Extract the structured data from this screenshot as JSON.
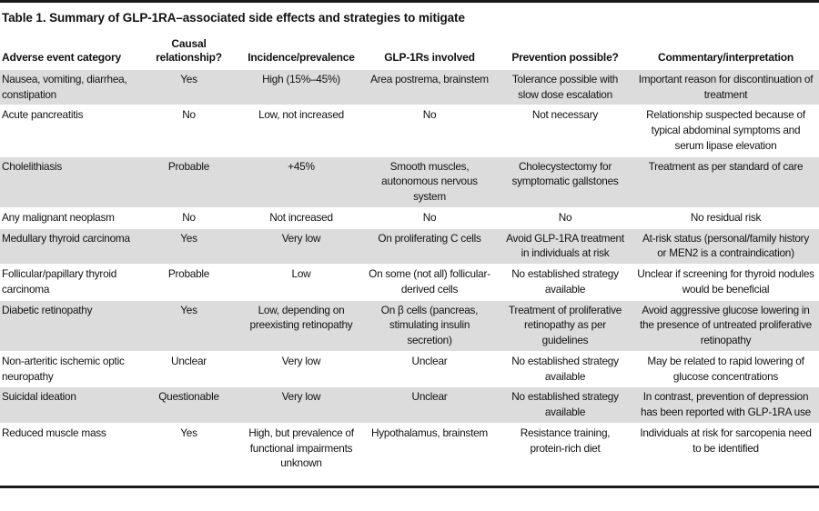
{
  "table": {
    "title": "Table 1. Summary of GLP-1RA–associated side effects and strategies to mitigate",
    "columns": [
      "Adverse event category",
      "Causal relationship?",
      "Incidence/prevalence",
      "GLP-1Rs involved",
      "Prevention possible?",
      "Commentary/interpretation"
    ],
    "rows": [
      [
        "Nausea, vomiting, diarrhea, constipation",
        "Yes",
        "High (15%–45%)",
        "Area postrema, brainstem",
        "Tolerance possible with slow dose escalation",
        "Important reason for discontinuation of treatment"
      ],
      [
        "Acute pancreatitis",
        "No",
        "Low, not increased",
        "No",
        "Not necessary",
        "Relationship suspected because of typical abdominal symptoms and serum lipase elevation"
      ],
      [
        "Cholelithiasis",
        "Probable",
        "+45%",
        "Smooth muscles, autonomous nervous system",
        "Cholecystectomy for symptomatic gallstones",
        "Treatment as per standard of care"
      ],
      [
        "Any malignant neoplasm",
        "No",
        "Not increased",
        "No",
        "No",
        "No residual risk"
      ],
      [
        "Medullary thyroid carcinoma",
        "Yes",
        "Very low",
        "On proliferating C cells",
        "Avoid GLP-1RA treatment in individuals at risk",
        "At-risk status (personal/family history or MEN2 is a contraindication)"
      ],
      [
        "Follicular/papillary thyroid carcinoma",
        "Probable",
        "Low",
        "On some (not all) follicular-derived cells",
        "No established strategy available",
        "Unclear if screening for thyroid nodules would be beneficial"
      ],
      [
        "Diabetic retinopathy",
        "Yes",
        "Low, depending on preexisting retinopathy",
        "On β cells (pancreas, stimulating insulin secretion)",
        "Treatment of proliferative retinopathy as per guidelines",
        "Avoid aggressive glucose lowering in the presence of untreated proliferative retinopathy"
      ],
      [
        "Non-arteritic ischemic optic neuropathy",
        "Unclear",
        "Very low",
        "Unclear",
        "No established strategy available",
        "May be related to rapid lowering of glucose concentrations"
      ],
      [
        "Suicidal ideation",
        "Questionable",
        "Very low",
        "Unclear",
        "No established strategy available",
        "In contrast, prevention of depression has been reported with GLP-1RA use"
      ],
      [
        "Reduced muscle mass",
        "Yes",
        "High, but prevalence of functional impairments unknown",
        "Hypothalamus, brainstem",
        "Resistance training, protein-rich diet",
        "Individuals at risk for sarcopenia need to be identified"
      ]
    ]
  },
  "colors": {
    "row_shade": "#dcdcdc",
    "rule": "#1b1b1b",
    "text": "#111111"
  }
}
